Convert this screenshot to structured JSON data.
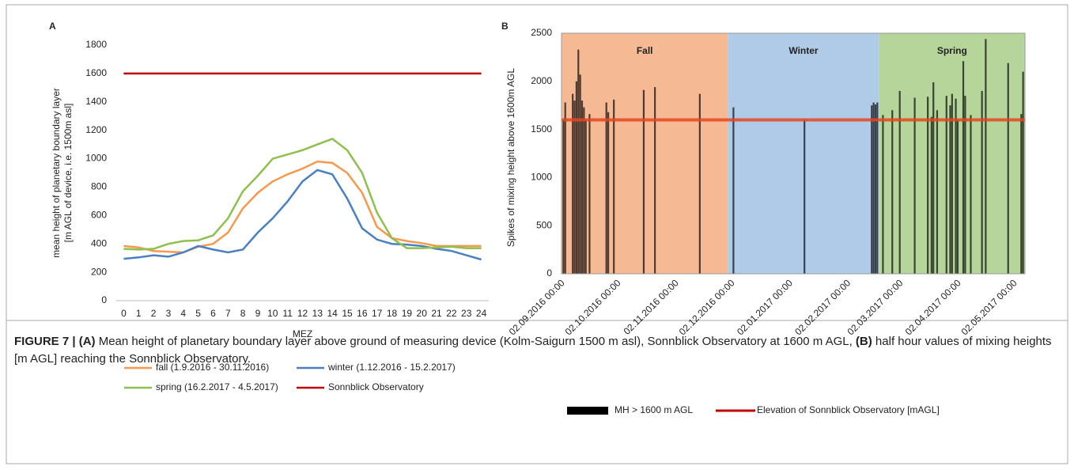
{
  "chart_data": [
    {
      "type": "line",
      "panel": "A",
      "xlabel": "MEZ",
      "ylabel": [
        "mean height of planetary boundary layer",
        "[m AGL of device, i.e. 1500m asl]"
      ],
      "x": [
        0,
        1,
        2,
        3,
        4,
        5,
        6,
        7,
        8,
        9,
        10,
        11,
        12,
        13,
        14,
        15,
        16,
        17,
        18,
        19,
        20,
        21,
        22,
        23,
        24
      ],
      "xlim": [
        -0.5,
        24.5
      ],
      "xticks": [
        0,
        1,
        2,
        3,
        4,
        5,
        6,
        7,
        8,
        9,
        10,
        11,
        12,
        13,
        14,
        15,
        16,
        17,
        18,
        19,
        20,
        21,
        22,
        23,
        24
      ],
      "ylim": [
        0,
        1800
      ],
      "yticks": [
        0,
        200,
        400,
        600,
        800,
        1000,
        1200,
        1400,
        1600,
        1800
      ],
      "legend": "bottom",
      "series": [
        {
          "name": "fall (1.9.2016 - 30.11.2016)",
          "color": "#f5994f",
          "values": [
            385,
            375,
            350,
            345,
            340,
            380,
            400,
            480,
            650,
            760,
            840,
            890,
            930,
            980,
            970,
            900,
            760,
            520,
            440,
            420,
            405,
            385,
            385,
            385,
            385
          ]
        },
        {
          "name": "winter (1.12.2016 - 15.2.2017)",
          "color": "#4a7fc1",
          "values": [
            295,
            305,
            320,
            310,
            340,
            385,
            360,
            340,
            360,
            480,
            580,
            700,
            840,
            920,
            890,
            720,
            510,
            430,
            400,
            395,
            385,
            365,
            350,
            320,
            290
          ]
        },
        {
          "name": "spring (16.2.2017 - 4.5.2017)",
          "color": "#8fbf4f",
          "values": [
            365,
            360,
            365,
            400,
            420,
            425,
            460,
            580,
            770,
            880,
            1000,
            1030,
            1060,
            1100,
            1140,
            1060,
            900,
            620,
            440,
            370,
            370,
            375,
            380,
            370,
            370
          ]
        },
        {
          "name": "Sonnblick Observatory",
          "color": "#c00000",
          "values": [
            1600,
            1600,
            1600,
            1600,
            1600,
            1600,
            1600,
            1600,
            1600,
            1600,
            1600,
            1600,
            1600,
            1600,
            1600,
            1600,
            1600,
            1600,
            1600,
            1600,
            1600,
            1600,
            1600,
            1600,
            1600
          ]
        }
      ]
    },
    {
      "type": "bar",
      "panel": "B",
      "ylabel": "Spikes of mixing height above 1600m AGL",
      "name": "MH > 1600 m AGL",
      "color": "#000000",
      "x": [
        "2016-09-02",
        "2016-09-03",
        "2016-09-07",
        "2016-09-08",
        "2016-09-09",
        "2016-09-10",
        "2016-09-11",
        "2016-09-12",
        "2016-09-13",
        "2016-09-14",
        "2016-09-16",
        "2016-09-25",
        "2016-09-26",
        "2016-09-29",
        "2016-10-15",
        "2016-10-21",
        "2016-11-14",
        "2016-12-02",
        "2017-01-09",
        "2017-02-14",
        "2017-02-15",
        "2017-02-16",
        "2017-02-17",
        "2017-02-20",
        "2017-02-25",
        "2017-03-01",
        "2017-03-09",
        "2017-03-16",
        "2017-03-18",
        "2017-03-19",
        "2017-03-21",
        "2017-03-26",
        "2017-03-28",
        "2017-03-29",
        "2017-03-31",
        "2017-04-01",
        "2017-04-04",
        "2017-04-05",
        "2017-04-08",
        "2017-04-14",
        "2017-04-16",
        "2017-04-28",
        "2017-05-05",
        "2017-05-06"
      ],
      "values": [
        1600,
        1780,
        1870,
        1800,
        2000,
        2330,
        2070,
        1800,
        1730,
        1600,
        1660,
        1780,
        1680,
        1810,
        1910,
        1940,
        1870,
        1730,
        1600,
        1750,
        1780,
        1760,
        1780,
        1650,
        1700,
        1900,
        1830,
        1840,
        1630,
        1990,
        1700,
        1850,
        1750,
        1870,
        1820,
        1600,
        2210,
        1850,
        1650,
        1900,
        2440,
        2190,
        1660,
        2100
      ],
      "xlim": [
        "2016-09-01",
        "2017-05-07"
      ],
      "xticks": [
        {
          "value": "2016-09-02",
          "label": "02.09.2016 00:00"
        },
        {
          "value": "2016-10-02",
          "label": "02.10.2016 00:00"
        },
        {
          "value": "2016-11-02",
          "label": "02.11.2016 00:00"
        },
        {
          "value": "2016-12-02",
          "label": "02.12.2016 00:00"
        },
        {
          "value": "2017-01-02",
          "label": "02.01.2017 00:00"
        },
        {
          "value": "2017-02-02",
          "label": "02.02.2017 00:00"
        },
        {
          "value": "2017-03-02",
          "label": "02.03.2017 00:00"
        },
        {
          "value": "2017-04-02",
          "label": "02.04.2017 00:00"
        },
        {
          "value": "2017-05-02",
          "label": "02.05.2017 00:00"
        }
      ],
      "ylim": [
        0,
        2500
      ],
      "yticks": [
        0,
        500,
        1000,
        1500,
        2000,
        2500
      ],
      "seasons": [
        {
          "name": "Fall",
          "start": "2016-09-01",
          "end": "2016-11-29",
          "color": "#f5b994"
        },
        {
          "name": "Winter",
          "start": "2016-11-29",
          "end": "2017-02-18",
          "color": "#b0cbe8"
        },
        {
          "name": "Spring",
          "start": "2017-02-18",
          "end": "2017-05-07",
          "color": "#b5d59a"
        }
      ],
      "reference": {
        "name": "Elevation of Sonnblick Observatory [mAGL]",
        "value": 1600,
        "color": "#e5461f",
        "legend_color": "#c00000"
      },
      "legend": "bottom"
    }
  ],
  "caption": {
    "label": "FIGURE 7 |",
    "part_a_label": "(A)",
    "part_a": "Mean height of planetary boundary layer above ground of measuring device (Kolm-Saigurn 1500 m asl), Sonnblick Observatory at 1600 m AGL,",
    "part_b_label": "(B)",
    "part_b": "half hour values of mixing heights [m AGL] reaching the Sonnblick Observatory."
  }
}
